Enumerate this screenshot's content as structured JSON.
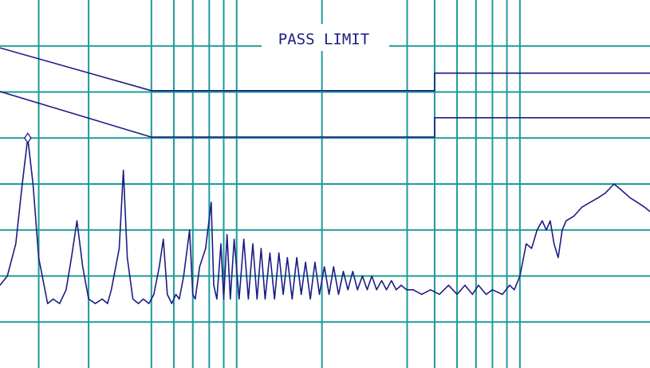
{
  "chart_data": {
    "type": "line",
    "title": "PASS LIMIT",
    "xscale": "log",
    "xlim": [
      14.6,
      2880
    ],
    "ylim": [
      0,
      80
    ],
    "xticks": [
      20,
      30,
      50,
      60,
      70,
      80,
      90,
      100,
      200,
      400,
      500,
      600,
      700,
      800,
      900,
      1000
    ],
    "yticks": [
      10,
      20,
      30,
      40,
      50,
      60,
      70
    ],
    "grid": true,
    "grid_color": "#1f9a9a",
    "series": [
      {
        "color": "#1c1c84",
        "x": [
          14.6,
          50,
          500,
          500,
          2880
        ],
        "values": [
          69.6,
          60.3,
          60.3,
          64.1,
          64.1
        ]
      },
      {
        "color": "#1c1c84",
        "x": [
          14.6,
          50,
          500,
          500,
          2880
        ],
        "values": [
          60.1,
          50.2,
          50.2,
          54.4,
          54.4
        ]
      },
      {
        "color": "#1c1c84",
        "peak_marker": 4,
        "x": [
          14.6,
          15.5,
          16.6,
          17.5,
          18.3,
          19.1,
          20,
          21.5,
          22.5,
          23.7,
          25,
          26.1,
          27.3,
          28.6,
          30,
          31.7,
          33.5,
          35,
          36.1,
          38.5,
          39.8,
          41.1,
          43,
          45,
          46.8,
          49,
          51,
          53.3,
          55.1,
          56.9,
          59,
          61,
          62.7,
          65,
          68.2,
          70,
          71.4,
          74,
          77.7,
          81.3,
          83,
          85.1,
          88,
          90,
          92.5,
          95,
          98,
          102,
          106,
          110,
          114,
          118,
          122,
          126,
          131,
          136,
          141,
          146,
          151,
          157,
          163,
          169,
          175,
          182,
          189,
          196,
          204,
          212,
          220,
          229,
          238,
          247,
          257,
          267,
          278,
          289,
          300,
          312,
          325,
          338,
          352,
          366,
          381,
          398,
          420,
          450,
          484,
          520,
          560,
          600,
          640,
          680,
          714,
          760,
          800,
          867,
          920,
          955,
          1000,
          1053,
          1100,
          1150,
          1199,
          1240,
          1280,
          1320,
          1365,
          1410,
          1456,
          1550,
          1659,
          1770,
          1888,
          2000,
          2150,
          2250,
          2350,
          2449,
          2600,
          2750,
          2880
        ],
        "values": [
          18,
          20,
          27,
          40,
          50,
          40,
          24,
          14,
          15,
          14,
          17,
          24,
          32,
          22,
          15,
          14,
          15,
          14,
          17,
          26,
          43,
          24,
          15,
          14,
          15,
          14,
          16,
          22,
          28,
          16,
          14,
          16,
          15,
          20,
          30,
          16,
          15,
          22,
          26,
          36,
          18,
          15,
          27,
          15,
          29,
          15,
          28,
          15,
          28,
          15,
          27,
          15,
          26,
          15,
          25,
          15,
          25,
          16,
          24,
          15,
          24,
          16,
          23,
          15,
          23,
          16,
          22,
          16,
          22,
          16,
          21,
          17,
          21,
          17,
          20,
          17,
          20,
          17,
          19,
          17,
          19,
          17,
          18,
          17,
          17,
          16,
          17,
          16,
          18,
          16,
          18,
          16,
          18,
          16,
          17,
          16,
          18,
          17,
          20,
          27,
          26,
          30,
          32,
          30,
          32,
          27,
          24,
          30,
          32,
          33,
          35,
          36,
          37,
          38,
          40,
          39,
          38,
          37,
          36,
          35,
          34
        ]
      }
    ]
  }
}
